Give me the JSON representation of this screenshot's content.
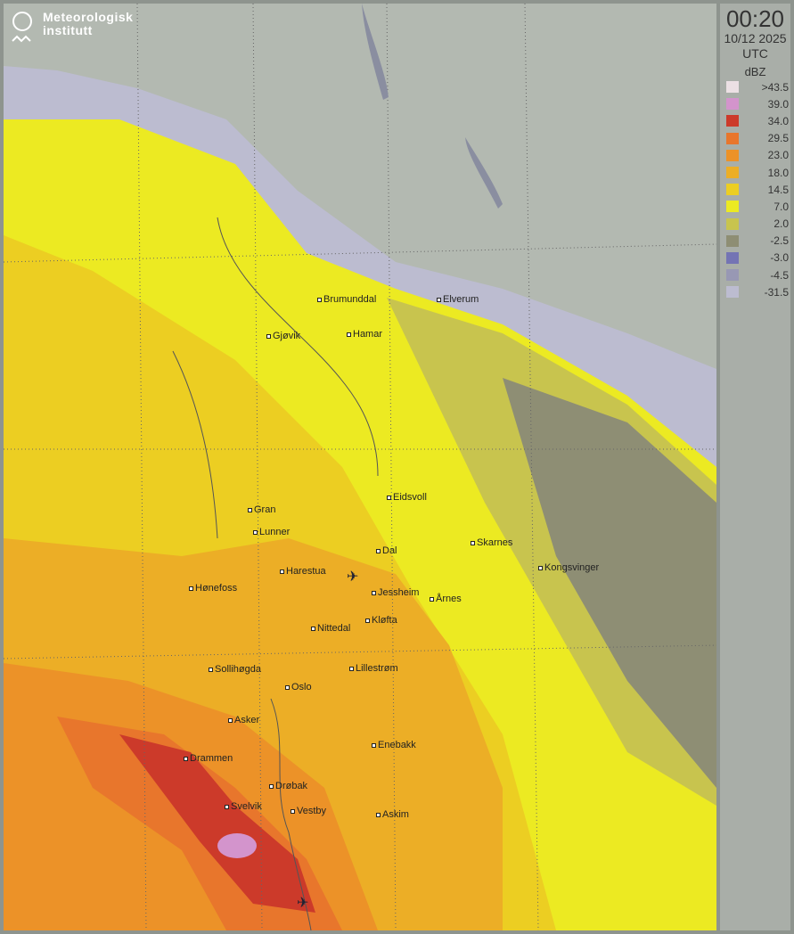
{
  "brand": {
    "line1": "Meteorologisk",
    "line2": "institutt"
  },
  "panel": {
    "time": "00:20",
    "date": "10/12 2025",
    "tz": "UTC",
    "unit": "dBZ",
    "legend": [
      {
        "label": ">43.5",
        "color": "#ece0e4"
      },
      {
        "label": "39.0",
        "color": "#d394cc"
      },
      {
        "label": "34.0",
        "color": "#cc3a2a"
      },
      {
        "label": "29.5",
        "color": "#e8762c"
      },
      {
        "label": "23.0",
        "color": "#ec9228"
      },
      {
        "label": "18.0",
        "color": "#ecae26"
      },
      {
        "label": "14.5",
        "color": "#ecce22"
      },
      {
        "label": "7.0",
        "color": "#ecea22"
      },
      {
        "label": "2.0",
        "color": "#c8c44e"
      },
      {
        "label": "-2.5",
        "color": "#8e8e74"
      },
      {
        "label": "-3.0",
        "color": "#7474b4"
      },
      {
        "label": "-4.5",
        "color": "#9898b4"
      },
      {
        "label": "-31.5",
        "color": "#bcbcd0"
      }
    ]
  },
  "cities": [
    "Brumunddal",
    "Elverum",
    "Gjøvik",
    "Hamar",
    "Gran",
    "Eidsvoll",
    "Lunner",
    "Dal",
    "Skarnes",
    "Harestua",
    "Kongsvinger",
    "Hønefoss",
    "Jessheim",
    "Årnes",
    "Kløfta",
    "Nittedal",
    "Sollihøgda",
    "Lillestrøm",
    "Oslo",
    "Asker",
    "Enebakk",
    "Drammen",
    "Drøbak",
    "Svelvik",
    "Vestby",
    "Askim"
  ],
  "airports": [
    "airport-gardermoen",
    "airport-rygge"
  ]
}
